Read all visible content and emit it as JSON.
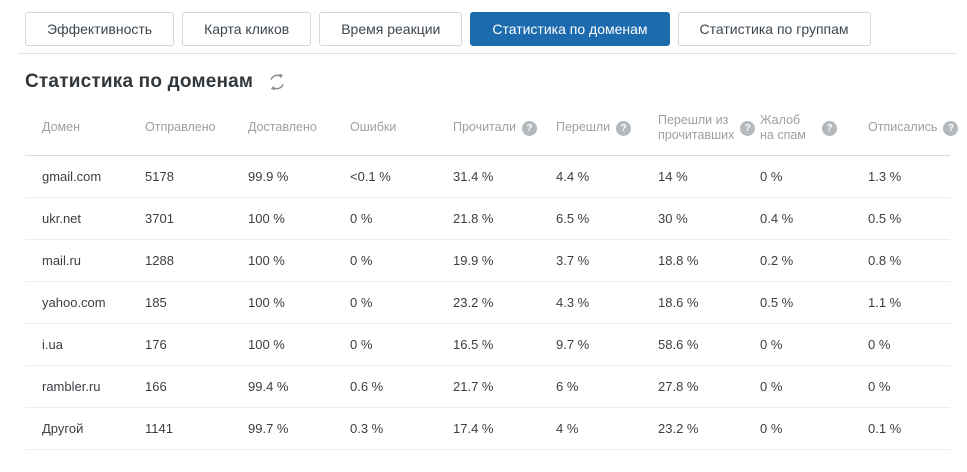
{
  "tabs": [
    {
      "label": "Эффективность",
      "active": false
    },
    {
      "label": "Карта кликов",
      "active": false
    },
    {
      "label": "Время реакции",
      "active": false
    },
    {
      "label": "Статистика по доменам",
      "active": true
    },
    {
      "label": "Статистика по группам",
      "active": false
    }
  ],
  "page": {
    "title": "Статистика по доменам"
  },
  "icons": {
    "help_glyph": "?",
    "refresh_color": "#8b9096"
  },
  "colors": {
    "active_tab_bg": "#1b6bae",
    "active_tab_text": "#ffffff",
    "header_text": "#9ca1a6",
    "cell_text": "#3a3f44"
  },
  "table": {
    "headers": [
      {
        "label": "Домен",
        "help": false
      },
      {
        "label": "Отправлено",
        "help": false
      },
      {
        "label": "Доставлено",
        "help": false
      },
      {
        "label": "Ошибки",
        "help": false
      },
      {
        "label": "Прочитали",
        "help": true
      },
      {
        "label": "Перешли",
        "help": true
      },
      {
        "label": "Перешли из прочитавших",
        "help": true
      },
      {
        "label": "Жалоб на спам",
        "help": true
      },
      {
        "label": "Отписались",
        "help": true
      }
    ],
    "rows": [
      [
        "gmail.com",
        "5178",
        "99.9 %",
        "<0.1 %",
        "31.4 %",
        "4.4 %",
        "14 %",
        "0 %",
        "1.3 %"
      ],
      [
        "ukr.net",
        "3701",
        "100 %",
        "0 %",
        "21.8 %",
        "6.5 %",
        "30 %",
        "0.4 %",
        "0.5 %"
      ],
      [
        "mail.ru",
        "1288",
        "100 %",
        "0 %",
        "19.9 %",
        "3.7 %",
        "18.8 %",
        "0.2 %",
        "0.8 %"
      ],
      [
        "yahoo.com",
        "185",
        "100 %",
        "0 %",
        "23.2 %",
        "4.3 %",
        "18.6 %",
        "0.5 %",
        "1.1 %"
      ],
      [
        "i.ua",
        "176",
        "100 %",
        "0 %",
        "16.5 %",
        "9.7 %",
        "58.6 %",
        "0 %",
        "0 %"
      ],
      [
        "rambler.ru",
        "166",
        "99.4 %",
        "0.6 %",
        "21.7 %",
        "6 %",
        "27.8 %",
        "0 %",
        "0 %"
      ],
      [
        "Другой",
        "1141",
        "99.7 %",
        "0.3 %",
        "17.4 %",
        "4 %",
        "23.2 %",
        "0 %",
        "0.1 %"
      ]
    ]
  }
}
